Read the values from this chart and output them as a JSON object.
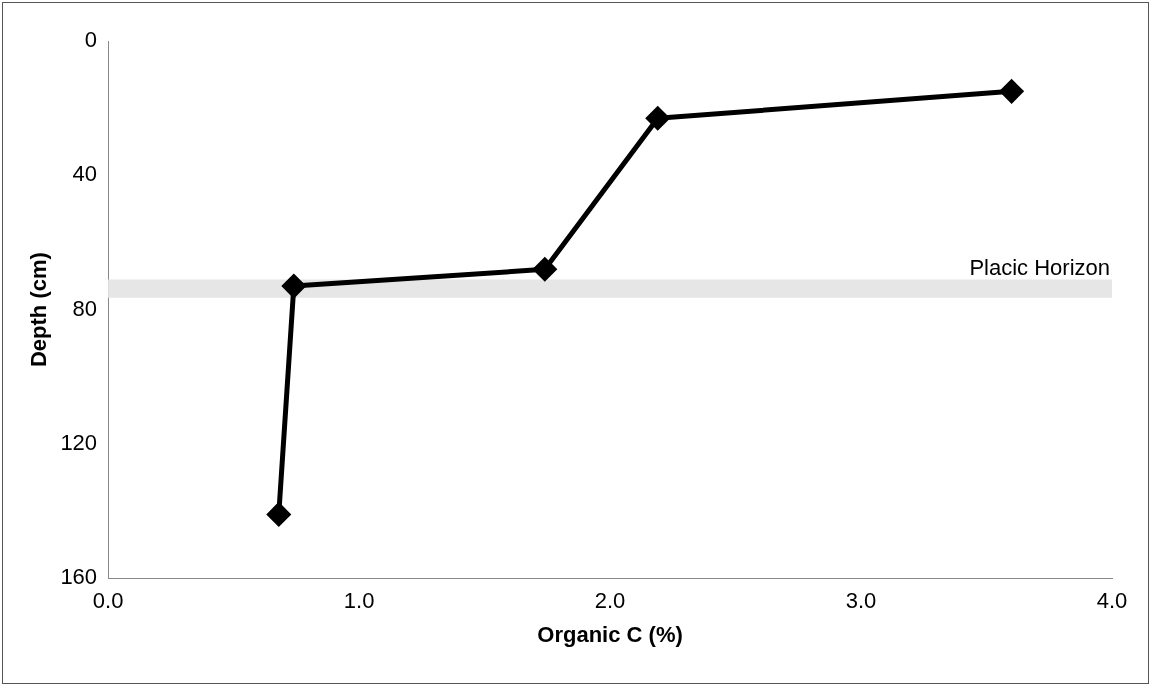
{
  "chart_data": {
    "type": "line",
    "xlabel": "Organic C (%)",
    "ylabel": "Depth (cm)",
    "x": [
      0.68,
      0.74,
      1.74,
      2.19,
      3.6
    ],
    "series": [
      {
        "color": "#000000",
        "values": [
          141,
          73,
          68,
          23,
          15
        ]
      }
    ],
    "xlim": [
      0,
      4
    ],
    "xticks": [
      {
        "value": 0,
        "label": "0.0"
      },
      {
        "value": 1,
        "label": "1.0"
      },
      {
        "value": 2,
        "label": "2.0"
      },
      {
        "value": 3,
        "label": "3.0"
      },
      {
        "value": 4,
        "label": "4.0"
      }
    ],
    "ylim": [
      160,
      0
    ],
    "yticks": [
      0,
      40,
      80,
      120,
      160
    ],
    "bands": [
      {
        "axis": "y",
        "from": 71,
        "to": 76.5,
        "label": "Placic Horizon",
        "color": "#e6e6e6"
      }
    ],
    "grid": false,
    "legend": false,
    "marker": "diamond",
    "line_style": "solid"
  }
}
